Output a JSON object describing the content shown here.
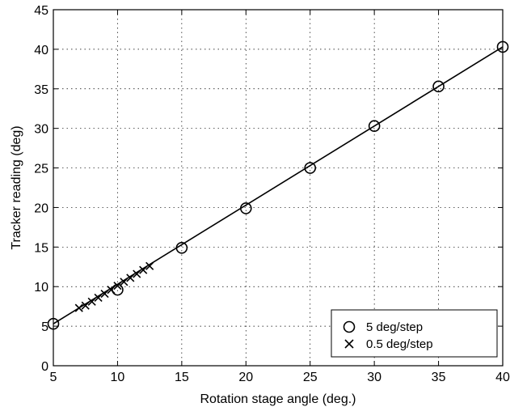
{
  "chart_data": {
    "type": "scatter",
    "title": "",
    "xlabel": "Rotation stage angle (deg.)",
    "ylabel": "Tracker reading (deg)",
    "xlim": [
      5,
      40
    ],
    "ylim": [
      0,
      45
    ],
    "xticks": [
      5,
      10,
      15,
      20,
      25,
      30,
      35,
      40
    ],
    "yticks": [
      0,
      5,
      10,
      15,
      20,
      25,
      30,
      35,
      40,
      45
    ],
    "grid": true,
    "legend_position": "bottom-right",
    "series": [
      {
        "name": "5 deg/step",
        "marker": "circle",
        "x": [
          5,
          10,
          15,
          20,
          25,
          30,
          35,
          40
        ],
        "y": [
          5.3,
          9.6,
          14.9,
          19.9,
          25.0,
          30.3,
          35.3,
          40.3
        ]
      },
      {
        "name": "0.5 deg/step",
        "marker": "x",
        "x": [
          7.0,
          7.5,
          8.0,
          8.5,
          9.0,
          9.5,
          10.0,
          10.5,
          11.0,
          11.5,
          12.0,
          12.5
        ],
        "y": [
          7.3,
          7.6,
          8.1,
          8.6,
          9.1,
          9.6,
          10.1,
          10.6,
          11.1,
          11.6,
          12.1,
          12.6
        ]
      },
      {
        "marker": "line",
        "x": [
          5,
          40
        ],
        "y": [
          5.3,
          40.3
        ]
      }
    ]
  }
}
